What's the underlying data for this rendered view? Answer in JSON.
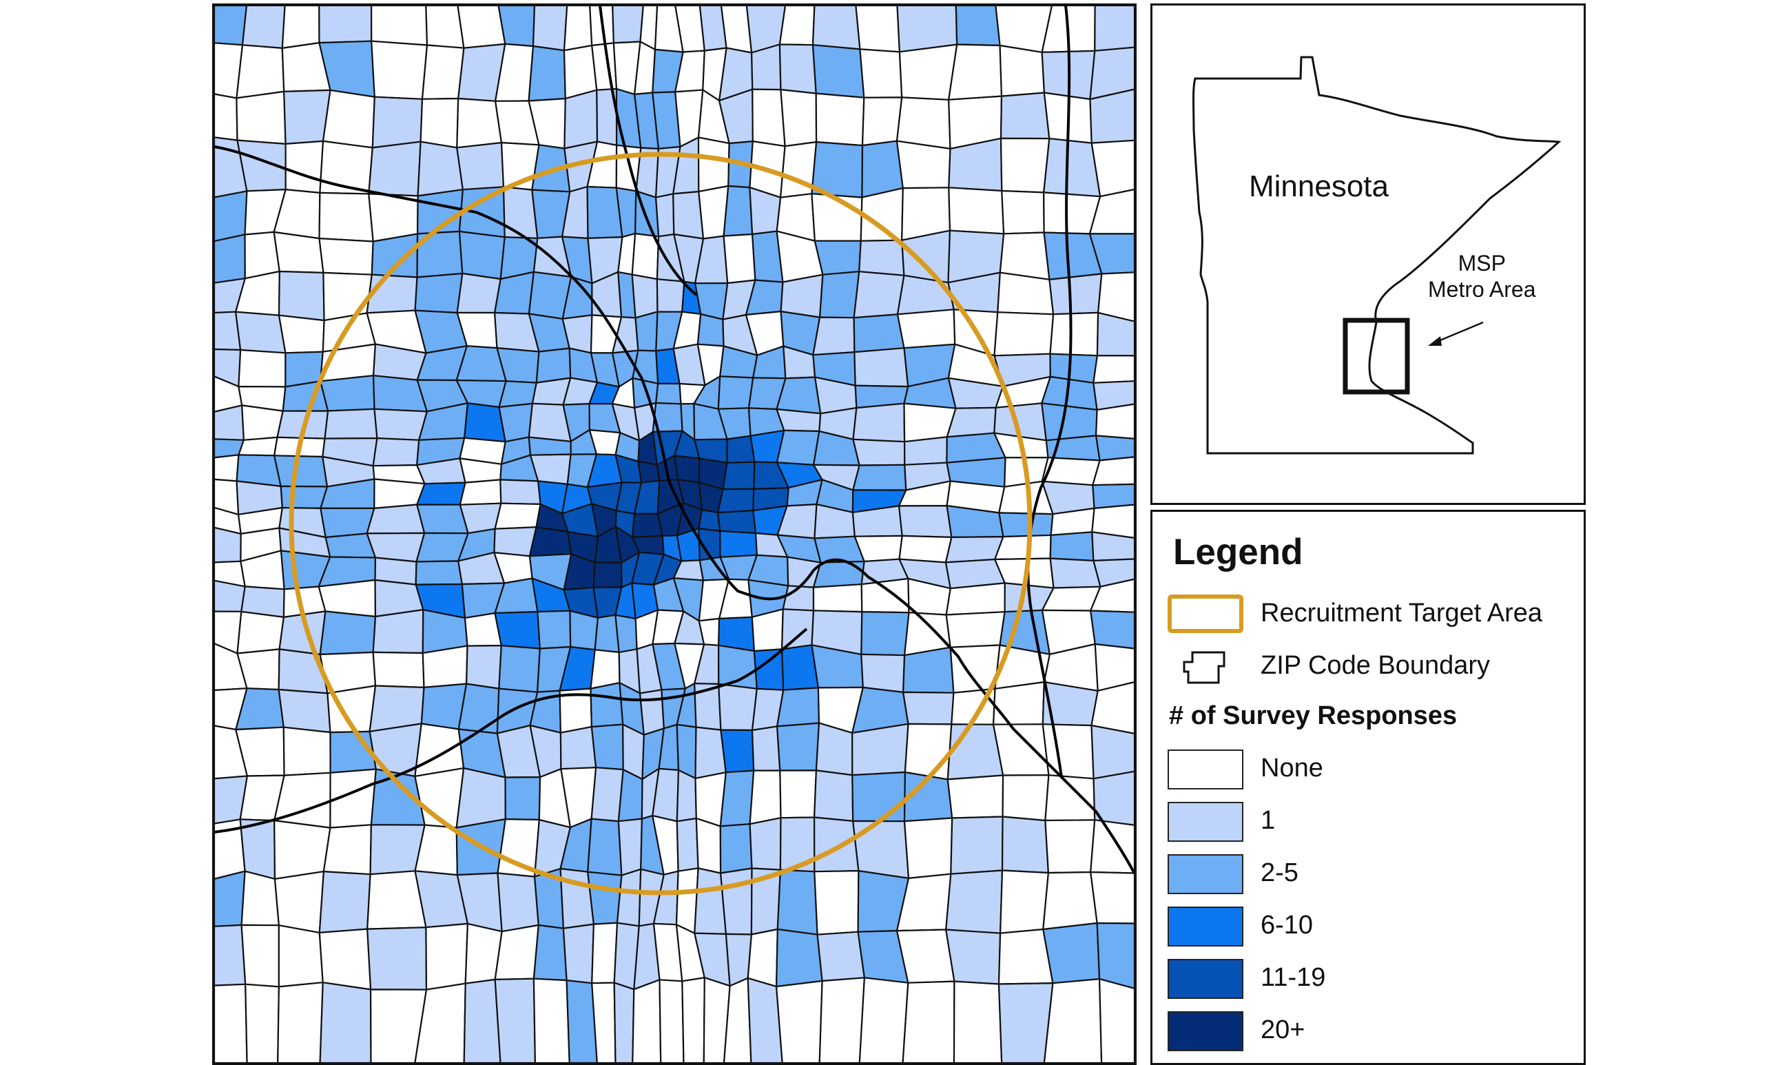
{
  "inset": {
    "state_label": "Minnesota",
    "callout_line1": "MSP",
    "callout_line2": "Metro Area"
  },
  "legend": {
    "title": "Legend",
    "target_area_label": "Recruitment Target Area",
    "zip_boundary_label": "ZIP Code Boundary",
    "responses_title": "# of Survey Responses",
    "classes": [
      {
        "label": "None",
        "color": "#ffffff"
      },
      {
        "label": "1",
        "color": "#bfd4fb"
      },
      {
        "label": "2-5",
        "color": "#6eaef5"
      },
      {
        "label": "6-10",
        "color": "#0d77f0"
      },
      {
        "label": "11-19",
        "color": "#0652b5"
      },
      {
        "label": "20+",
        "color": "#052d77"
      }
    ]
  },
  "colors": {
    "target_circle": "#d89b22",
    "boundary": "#111111",
    "river": "#000000"
  }
}
